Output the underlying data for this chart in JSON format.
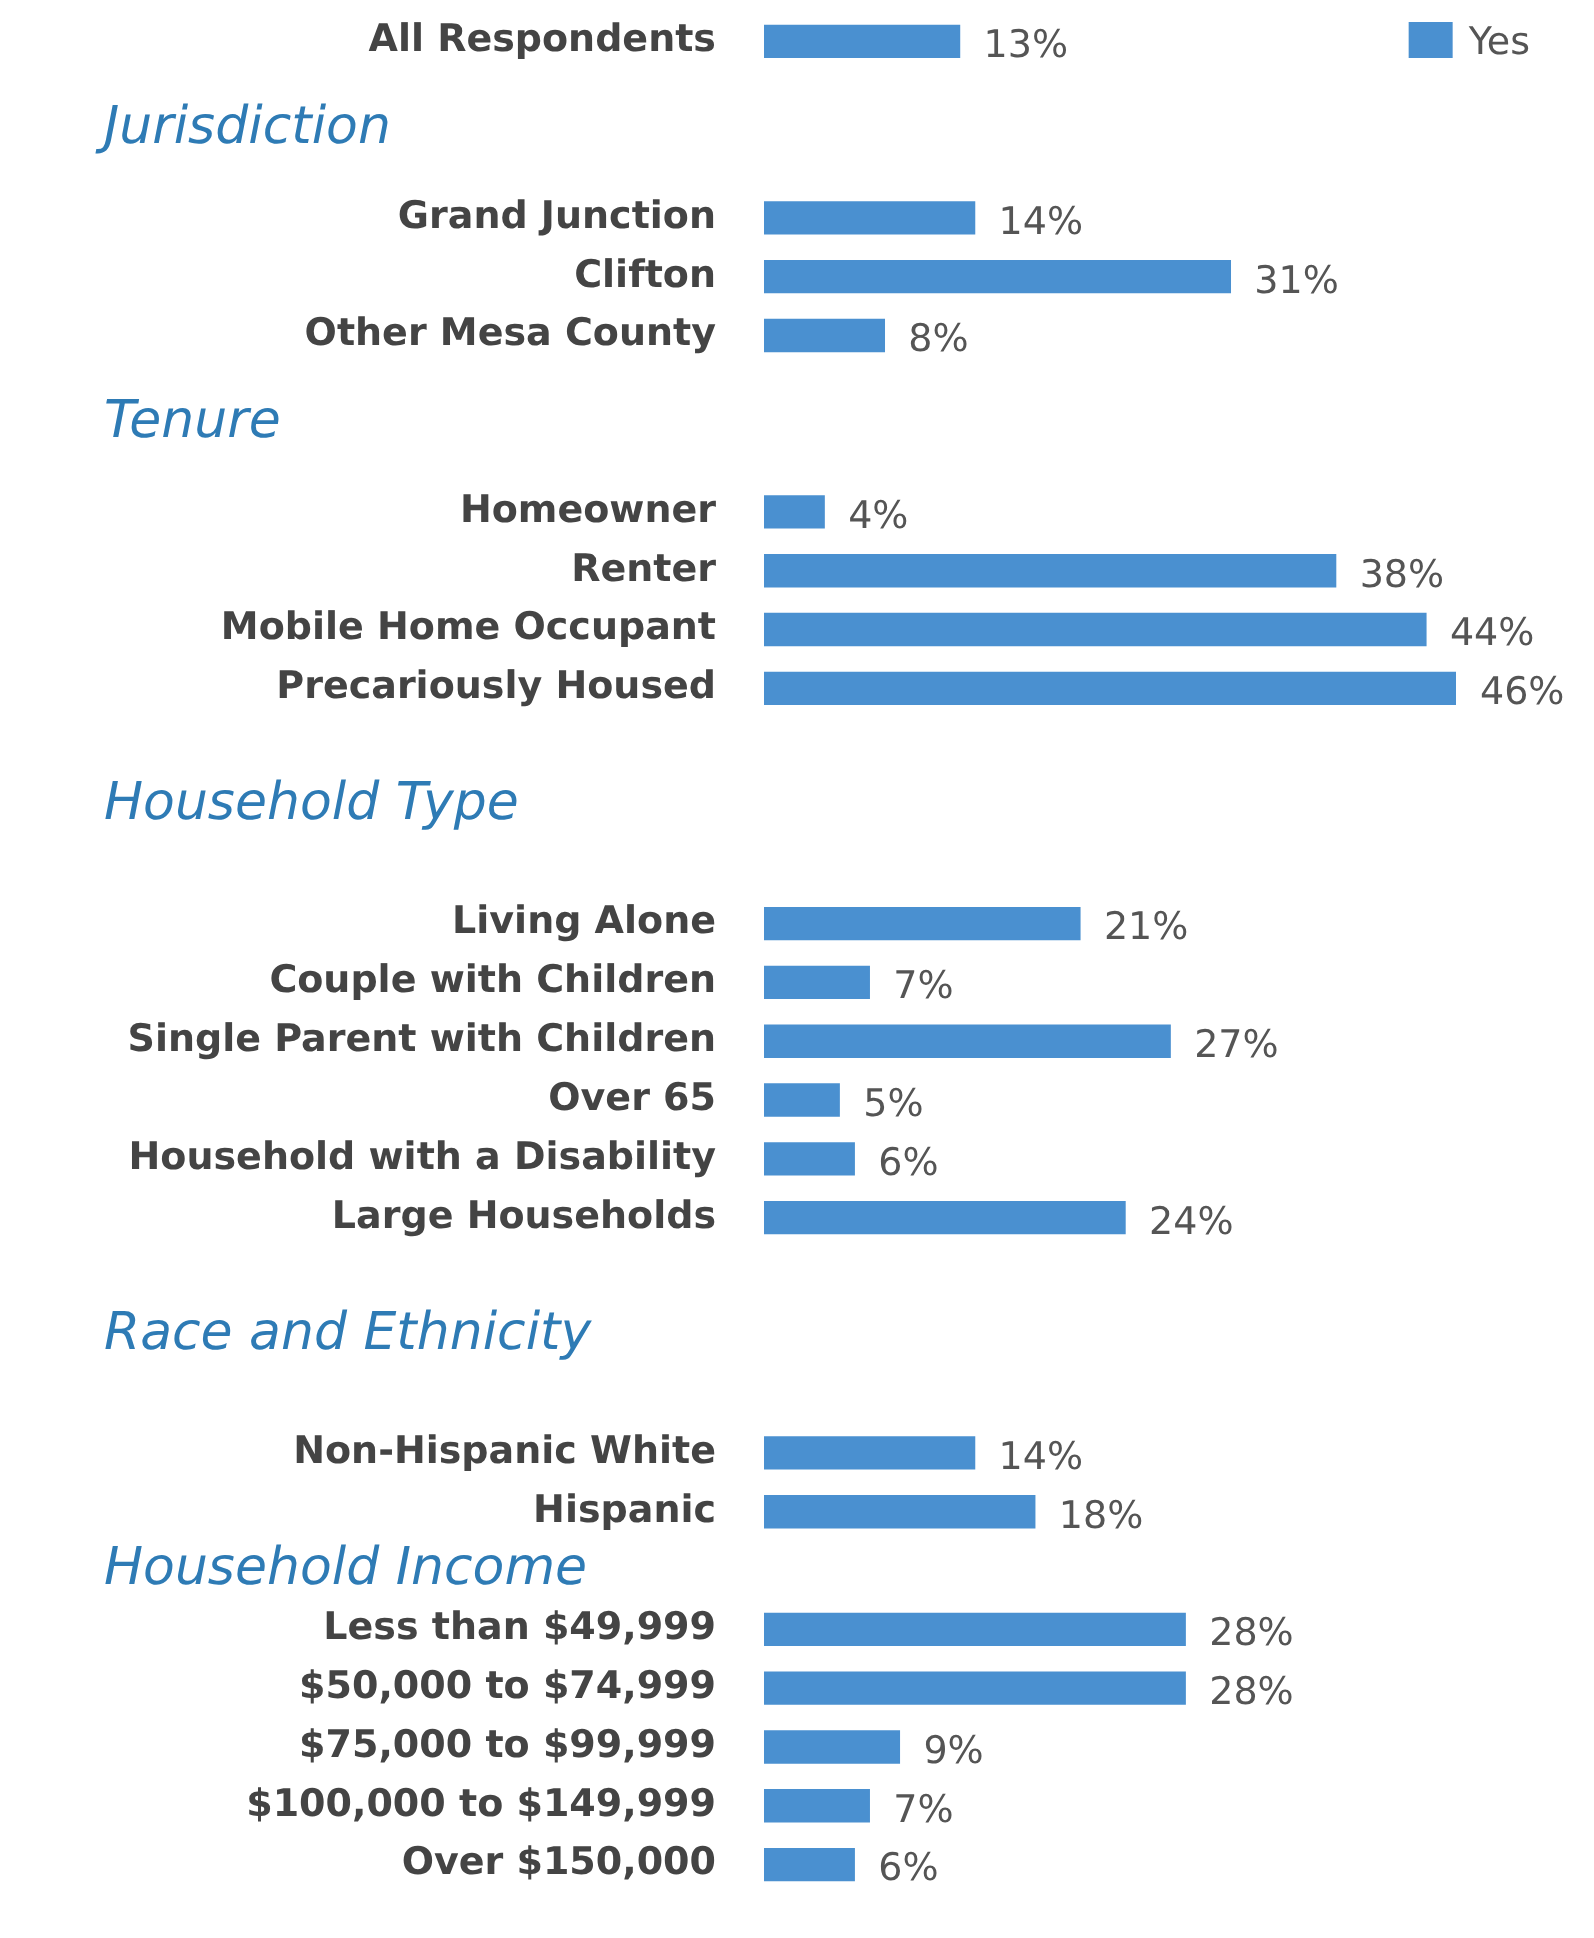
{
  "chart_data": {
    "type": "bar",
    "orientation": "horizontal",
    "categories": [
      "All Respondents",
      null,
      null,
      "Grand Junction",
      "Clifton",
      "Other Mesa County",
      null,
      null,
      "Homeowner",
      "Renter",
      "Mobile Home Occupant",
      "Precariously Housed",
      null,
      null,
      null,
      "Living Alone",
      "Couple with Children",
      "Single Parent with Children",
      "Over 65",
      "Household with a Disability",
      "Large Households",
      null,
      null,
      null,
      "Non-Hispanic White",
      "Hispanic",
      null,
      "Less than $49,999",
      "$50,000 to $74,999",
      "$75,000 to $99,999",
      "$100,000 to $149,999",
      "Over $150,000"
    ],
    "series": [
      {
        "name": "Yes",
        "color": "#4a90d0",
        "values": [
          13,
          null,
          null,
          14,
          31,
          8,
          null,
          null,
          4,
          38,
          44,
          46,
          null,
          null,
          null,
          21,
          7,
          27,
          5,
          6,
          24,
          null,
          null,
          null,
          14,
          18,
          null,
          28,
          28,
          9,
          7,
          6
        ],
        "value_labels": [
          "13%",
          null,
          null,
          "14%",
          "31%",
          "8%",
          null,
          null,
          "4%",
          "38%",
          "44%",
          "46%",
          null,
          null,
          null,
          "21%",
          "7%",
          "27%",
          "5%",
          "6%",
          "24%",
          null,
          null,
          null,
          "14%",
          "18%",
          null,
          "28%",
          "28%",
          "9%",
          "7%",
          "6%"
        ]
      }
    ],
    "annotations": [
      "Jurisdiction",
      "Tenure",
      "Household Type",
      "Race and Ethnicity",
      "Household Income"
    ],
    "legend": "top right"
  }
}
